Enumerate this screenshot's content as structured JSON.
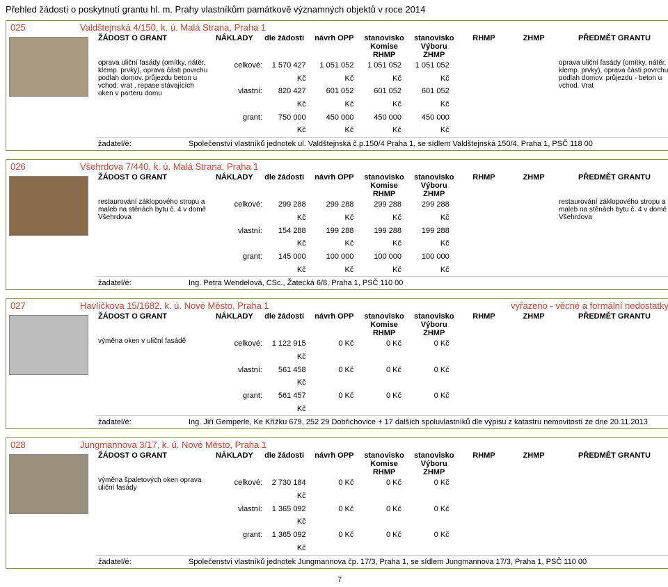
{
  "page_title": "Přehled žádostí o poskytnutí grantu hl. m. Prahy vlastníkům památkově významných objektů v roce 2014",
  "labels": {
    "zadost": "ŽÁDOST O GRANT",
    "naklady": "NÁKLADY",
    "dle": "dle žádosti",
    "opp": "návrh OPP",
    "sv1": "stanovisko",
    "komise": "Komise RHMP",
    "sv2": "stanovisko",
    "vybor": "Výboru ZHMP",
    "rhmp": "RHMP",
    "zhmp": "ZHMP",
    "predmet": "PŘEDMĚT GRANTU",
    "celkove": "celkové:",
    "vlastni": "vlastní:",
    "grant": "grant:",
    "zadatel": "žadatel/é:",
    "page": "7"
  },
  "photo_bg": [
    "#a79a80",
    "#8a6b4c",
    "#bcbcbc",
    "#9a8f7a"
  ],
  "records": [
    {
      "id": "025",
      "addr": "Valdštejnská 4/150, k. ú. Malá Strana, Praha 1",
      "note": "",
      "desc": "oprava uliční fasády (omítky, nátěr, klemp. prvky), oprava části povrchu podlah domov. průjezdu beton u vchod. vrat , repase stávajících oken v parteru domu",
      "subject": "oprava uliční fasády (omítky, nátěr, klemp. prvky), oprava části povrchu podlah domov. průjezdu - beton u vchod. Vrat",
      "rows": {
        "celkove": [
          "1 570 427 Kč",
          "1 051 052 Kč",
          "1 051 052 Kč",
          "1 051 052 Kč",
          "",
          ""
        ],
        "vlastni": [
          "820 427 Kč",
          "601 052 Kč",
          "601 052 Kč",
          "601 052 Kč",
          "",
          ""
        ],
        "grant": [
          "750 000 Kč",
          "450 000 Kč",
          "450 000 Kč",
          "450 000 Kč",
          "",
          ""
        ]
      },
      "applicant": "Společenství vlastníků jednotek ul. Valdštejnská č.p.150/4 Praha 1, se sídlem Valdštejnská 150/4, Praha 1, PSČ 118 00"
    },
    {
      "id": "026",
      "addr": "Všehrdova 7/440, k. ú. Malá Strana, Praha 1",
      "note": "",
      "desc": "restaurování záklopového stropu a maleb na stěnách bytu č. 4  v domě Všehrdova",
      "subject": "restaurování záklopového stropu a maleb na stěnách bytu č. 4  v domě Všehrdova",
      "rows": {
        "celkove": [
          "299 288 Kč",
          "299 288 Kč",
          "299 288 Kč",
          "299 288 Kč",
          "",
          ""
        ],
        "vlastni": [
          "154 288 Kč",
          "199 288 Kč",
          "199 288 Kč",
          "199 288 Kč",
          "",
          ""
        ],
        "grant": [
          "145 000 Kč",
          "100 000 Kč",
          "100 000 Kč",
          "100 000 Kč",
          "",
          ""
        ]
      },
      "applicant": "Ing. Petra Wendelová, CSc., Žatecká 6/8, Praha 1, PSČ 110 00"
    },
    {
      "id": "027",
      "addr": "Havlíčkova 15/1682, k. ú. Nové Město, Praha 1",
      "note": "vyřazeno -  věcné a formální nedostatky",
      "desc": "výměna oken v uliční fasádě",
      "subject": "",
      "rows": {
        "celkove": [
          "1 122 915 Kč",
          "0 Kč",
          "0 Kč",
          "0 Kč",
          "",
          ""
        ],
        "vlastni": [
          "561 458 Kč",
          "0 Kč",
          "0 Kč",
          "0 Kč",
          "",
          ""
        ],
        "grant": [
          "561 457 Kč",
          "0 Kč",
          "0 Kč",
          "0 Kč",
          "",
          ""
        ]
      },
      "applicant": "Ing. Jiří Gemperle, Ke Křížku 679, 252 29 Dobřichovice + 17 dalších spoluvlastníků dle výpisu z katastru nemovitostí ze dne 20.11.2013"
    },
    {
      "id": "028",
      "addr": "Jungmannova 3/17, k. ú. Nové Město, Praha 1",
      "note": "",
      "desc": "výměna špaletových oken oprava uliční fasády",
      "subject": "",
      "rows": {
        "celkove": [
          "2 730 184 Kč",
          "0 Kč",
          "0 Kč",
          "0 Kč",
          "",
          ""
        ],
        "vlastni": [
          "1 365 092 Kč",
          "0 Kč",
          "0 Kč",
          "0 Kč",
          "",
          ""
        ],
        "grant": [
          "1 365 092 Kč",
          "0 Kč",
          "0 Kč",
          "0 Kč",
          "",
          ""
        ]
      },
      "applicant": "Společenství vlastníků jednotek Jungmannova čp. 17/3, Praha 1, se sídlem Jungmannova 17/3, Praha 1, PSČ 110 00"
    }
  ]
}
